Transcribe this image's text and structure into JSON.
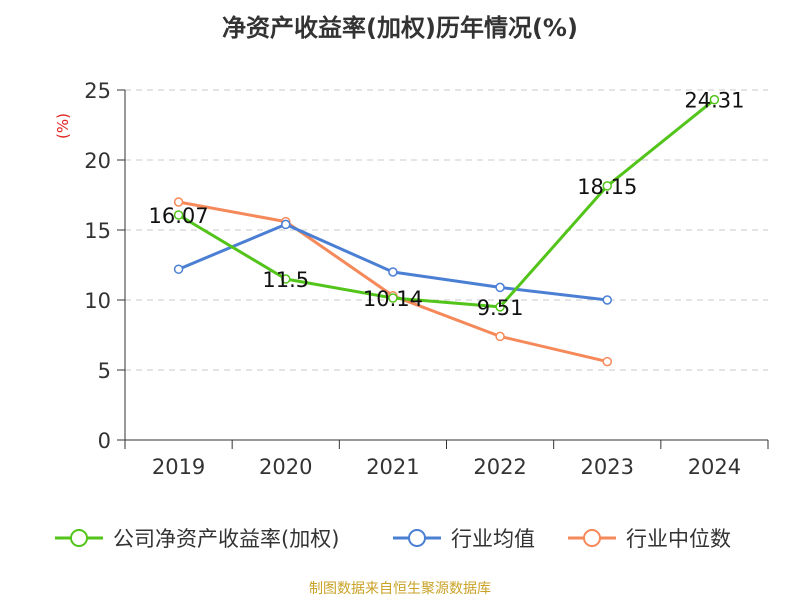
{
  "chart_data": {
    "type": "line",
    "title": "净资产收益率(加权)历年情况(%)",
    "ylabel": "(%)",
    "xlabel": "",
    "categories": [
      "2019",
      "2020",
      "2021",
      "2022",
      "2023",
      "2024"
    ],
    "ylim": [
      0,
      25
    ],
    "yticks": [
      0,
      5,
      10,
      15,
      20,
      25
    ],
    "grid": true,
    "legend_position": "bottom",
    "series": [
      {
        "name": "公司净资产收益率(加权)",
        "color": "#52c41a",
        "values": [
          16.07,
          11.5,
          10.14,
          9.51,
          18.15,
          24.31
        ],
        "labels": true
      },
      {
        "name": "行业均值",
        "color": "#4a7fd4",
        "values": [
          12.2,
          15.4,
          12.0,
          10.9,
          10.0,
          null
        ],
        "labels": false
      },
      {
        "name": "行业中位数",
        "color": "#f5895a",
        "values": [
          17.0,
          15.6,
          10.3,
          7.4,
          5.6,
          null
        ],
        "labels": false
      }
    ],
    "data_labels": [
      "16.07",
      "11.5",
      "10.14",
      "9.51",
      "18.15",
      "24.31"
    ]
  },
  "source": "制图数据来自恒生聚源数据库"
}
